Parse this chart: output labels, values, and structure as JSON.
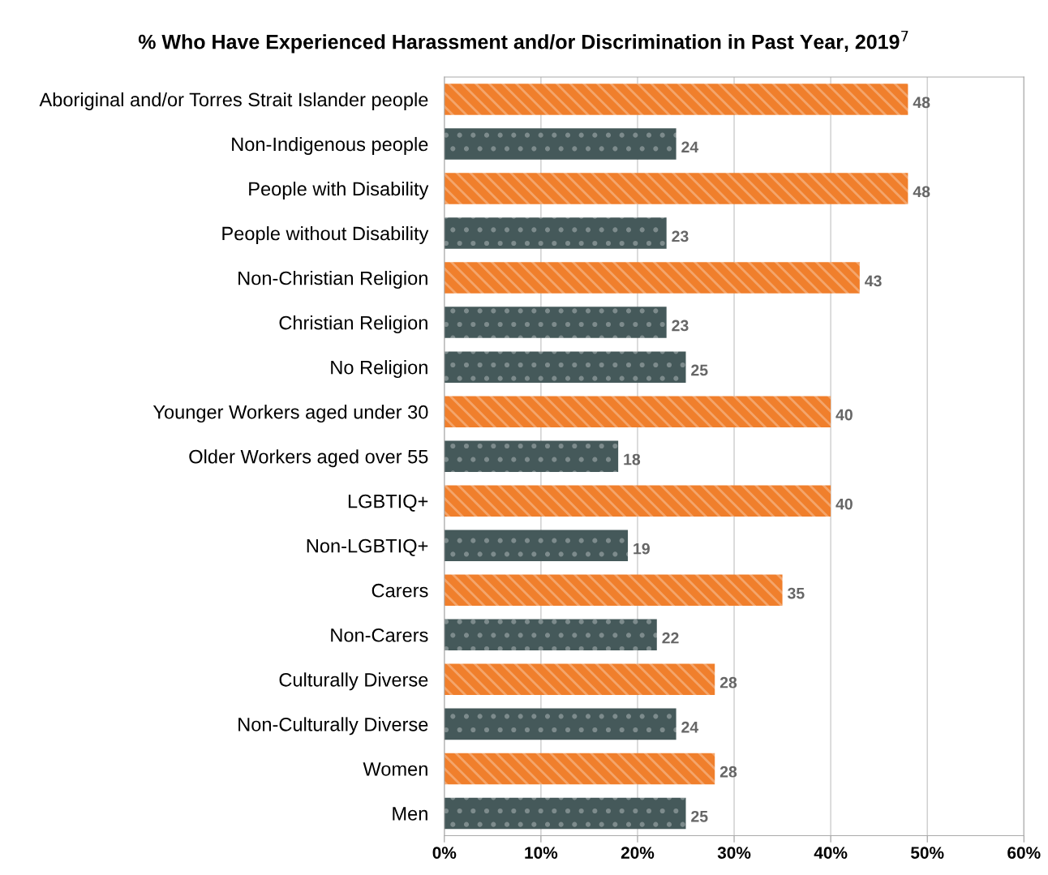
{
  "chart_data": {
    "type": "bar",
    "orientation": "horizontal",
    "title": "% Who Have Experienced Harassment and/or Discrimination in Past Year, 2019$^{7}$",
    "categories": [
      "Aboriginal and/or Torres Strait Islander people",
      "Non-Indigenous people",
      "People with Disability",
      "People without Disability",
      "Non-Christian Religion",
      "Christian Religion",
      "No Religion",
      "Younger Workers aged under 30",
      "Older Workers aged over 55",
      "LGBTIQ+",
      "Non-LGBTIQ+",
      "Carers",
      "Non-Carers",
      "Culturally Diverse",
      "Non-Culturally Diverse",
      "Women",
      "Men"
    ],
    "values": [
      48,
      24,
      48,
      23,
      43,
      23,
      25,
      40,
      18,
      40,
      19,
      35,
      22,
      28,
      24,
      28,
      25
    ],
    "colors": [
      "#f07f2c",
      "#45595a",
      "#f07f2c",
      "#45595a",
      "#f07f2c",
      "#45595a",
      "#45595a",
      "#f07f2c",
      "#45595a",
      "#f07f2c",
      "#45595a",
      "#f07f2c",
      "#45595a",
      "#f07f2c",
      "#45595a",
      "#f07f2c",
      "#45595a"
    ],
    "data_labels": true,
    "xlim": [
      0,
      60
    ],
    "xticks": [
      {
        "value": 0,
        "label": "0%"
      },
      {
        "value": 10,
        "label": "10%"
      },
      {
        "value": 20,
        "label": "20%"
      },
      {
        "value": 30,
        "label": "30%"
      },
      {
        "value": 40,
        "label": "40%"
      },
      {
        "value": 50,
        "label": "50%"
      },
      {
        "value": 60,
        "label": "60%"
      }
    ],
    "grid": "x"
  }
}
